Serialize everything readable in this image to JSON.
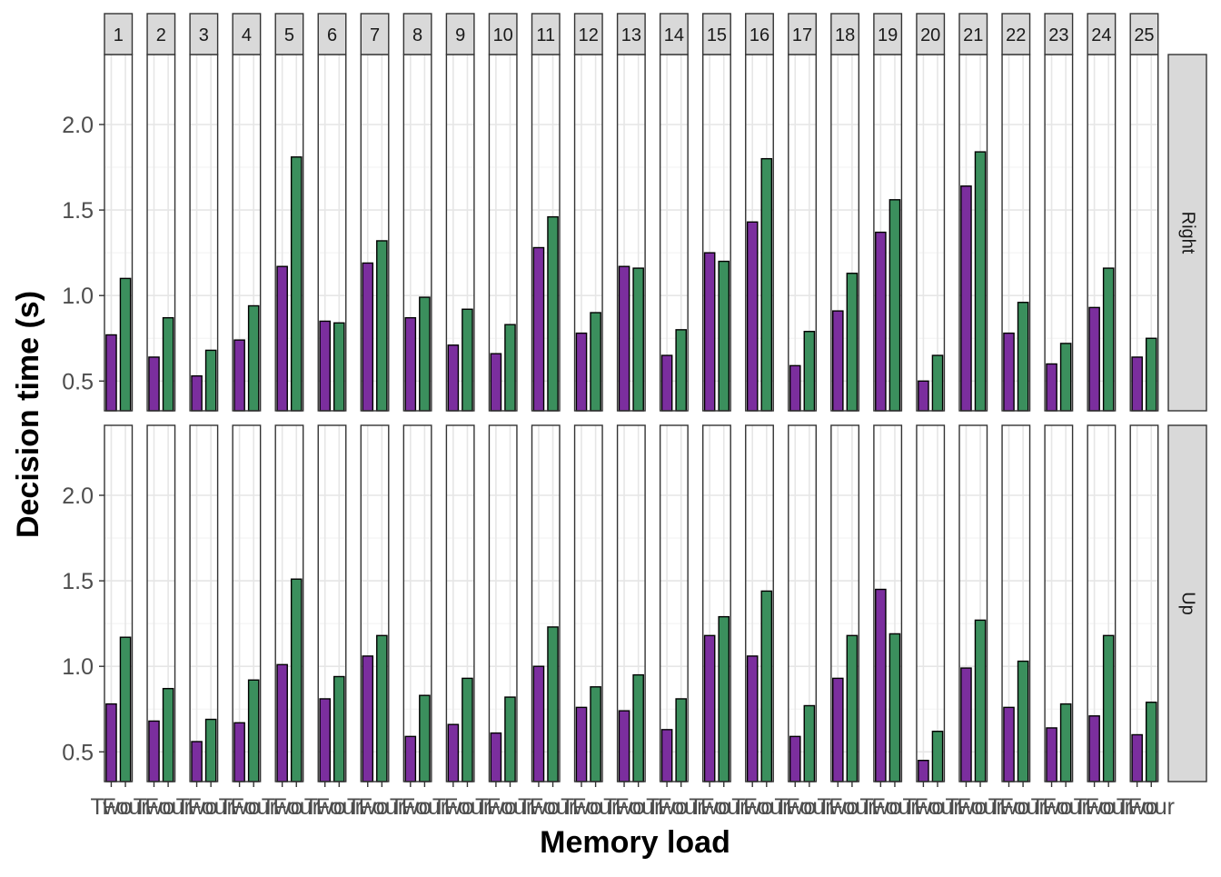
{
  "chart_data": {
    "type": "bar",
    "xlabel": "Memory load",
    "ylabel": "Decision time (s)",
    "categories": [
      "Two",
      "Four"
    ],
    "colors": {
      "Two": "#7b2e9e",
      "Four": "#3b8f5d"
    },
    "panels": [
      "1",
      "2",
      "3",
      "4",
      "5",
      "6",
      "7",
      "8",
      "9",
      "10",
      "11",
      "12",
      "13",
      "14",
      "15",
      "16",
      "17",
      "18",
      "19",
      "20",
      "21",
      "22",
      "23",
      "24",
      "25"
    ],
    "rows": [
      "Right",
      "Up"
    ],
    "ylim": [
      0,
      2.1
    ],
    "yticks": [
      0.5,
      1.0,
      1.5,
      2.0
    ],
    "ytick_labels": [
      "0.5",
      "1.0",
      "1.5",
      "2.0"
    ],
    "grid": true,
    "values": {
      "Right": [
        [
          0.77,
          1.1
        ],
        [
          0.64,
          0.87
        ],
        [
          0.53,
          0.68
        ],
        [
          0.74,
          0.94
        ],
        [
          1.17,
          1.81
        ],
        [
          0.85,
          0.84
        ],
        [
          1.19,
          1.32
        ],
        [
          0.87,
          0.99
        ],
        [
          0.71,
          0.92
        ],
        [
          0.66,
          0.83
        ],
        [
          1.28,
          1.46
        ],
        [
          0.78,
          0.9
        ],
        [
          1.17,
          1.16
        ],
        [
          0.65,
          0.8
        ],
        [
          1.25,
          1.2
        ],
        [
          1.43,
          1.8
        ],
        [
          0.59,
          0.79
        ],
        [
          0.91,
          1.13
        ],
        [
          1.37,
          1.56
        ],
        [
          0.5,
          0.65
        ],
        [
          1.64,
          1.84
        ],
        [
          0.78,
          0.96
        ],
        [
          0.6,
          0.72
        ],
        [
          0.93,
          1.16
        ],
        [
          0.64,
          0.75
        ]
      ],
      "Up": [
        [
          0.78,
          1.17
        ],
        [
          0.68,
          0.87
        ],
        [
          0.56,
          0.69
        ],
        [
          0.67,
          0.92
        ],
        [
          1.01,
          1.51
        ],
        [
          0.81,
          0.94
        ],
        [
          1.06,
          1.18
        ],
        [
          0.59,
          0.83
        ],
        [
          0.66,
          0.93
        ],
        [
          0.61,
          0.82
        ],
        [
          1.0,
          1.23
        ],
        [
          0.76,
          0.88
        ],
        [
          0.74,
          0.95
        ],
        [
          0.63,
          0.81
        ],
        [
          1.18,
          1.29
        ],
        [
          1.06,
          1.44
        ],
        [
          0.59,
          0.77
        ],
        [
          0.93,
          1.18
        ],
        [
          1.45,
          1.19
        ],
        [
          0.45,
          0.62
        ],
        [
          0.99,
          1.27
        ],
        [
          0.76,
          1.03
        ],
        [
          0.64,
          0.78
        ],
        [
          0.71,
          1.18
        ],
        [
          0.6,
          0.79
        ]
      ]
    }
  }
}
